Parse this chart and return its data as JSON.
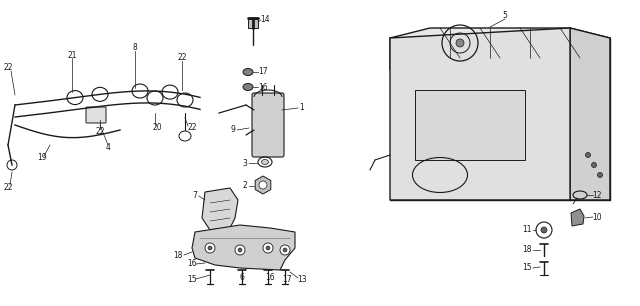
{
  "bg_color": "#ffffff",
  "line_color": "#1a1a1a",
  "fig_width": 6.4,
  "fig_height": 3.06,
  "dpi": 100,
  "font_size": 5.5
}
